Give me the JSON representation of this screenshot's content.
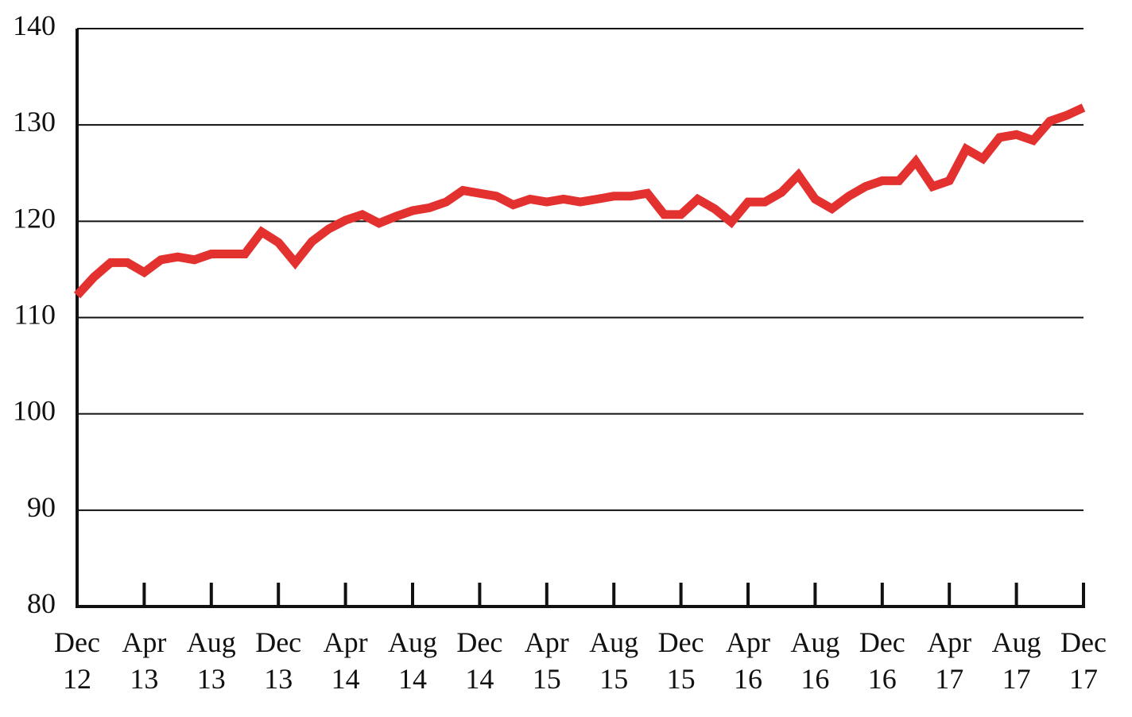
{
  "chart_data": {
    "type": "line",
    "title": "",
    "xlabel": "",
    "ylabel": "",
    "ylim": [
      80,
      140
    ],
    "yticks": [
      "80",
      "90",
      "100",
      "110",
      "120",
      "130",
      "140"
    ],
    "grid": true,
    "legend": "none",
    "line_color": "#e3312f",
    "x_tick_labels": [
      {
        "month": "Dec",
        "year": "12"
      },
      {
        "month": "Apr",
        "year": "13"
      },
      {
        "month": "Aug",
        "year": "13"
      },
      {
        "month": "Dec",
        "year": "13"
      },
      {
        "month": "Apr",
        "year": "14"
      },
      {
        "month": "Aug",
        "year": "14"
      },
      {
        "month": "Dec",
        "year": "14"
      },
      {
        "month": "Apr",
        "year": "15"
      },
      {
        "month": "Aug",
        "year": "15"
      },
      {
        "month": "Dec",
        "year": "15"
      },
      {
        "month": "Apr",
        "year": "16"
      },
      {
        "month": "Aug",
        "year": "16"
      },
      {
        "month": "Dec",
        "year": "16"
      },
      {
        "month": "Apr",
        "year": "17"
      },
      {
        "month": "Aug",
        "year": "17"
      },
      {
        "month": "Dec",
        "year": "17"
      }
    ],
    "series": [
      {
        "x": [
          "Dec 12",
          "Jan 13",
          "Feb 13",
          "Mar 13",
          "Apr 13",
          "May 13",
          "Jun 13",
          "Jul 13",
          "Aug 13",
          "Sep 13",
          "Oct 13",
          "Nov 13",
          "Dec 13",
          "Jan 14",
          "Feb 14",
          "Mar 14",
          "Apr 14",
          "May 14",
          "Jun 14",
          "Jul 14",
          "Aug 14",
          "Sep 14",
          "Oct 14",
          "Nov 14",
          "Dec 14",
          "Jan 15",
          "Feb 15",
          "Mar 15",
          "Apr 15",
          "May 15",
          "Jun 15",
          "Jul 15",
          "Aug 15",
          "Sep 15",
          "Oct 15",
          "Nov 15",
          "Dec 15",
          "Jan 16",
          "Feb 16",
          "Mar 16",
          "Apr 16",
          "May 16",
          "Jun 16",
          "Jul 16",
          "Aug 16",
          "Sep 16",
          "Oct 16",
          "Nov 16",
          "Dec 16",
          "Jan 17",
          "Feb 17",
          "Mar 17",
          "Apr 17",
          "May 17",
          "Jun 17",
          "Jul 17",
          "Aug 17",
          "Sep 17",
          "Oct 17",
          "Nov 17",
          "Dec 17"
        ],
        "values": [
          112.3,
          114.2,
          115.7,
          115.7,
          114.7,
          116.0,
          116.3,
          116.0,
          116.6,
          116.6,
          116.6,
          118.9,
          117.8,
          115.7,
          117.9,
          119.2,
          120.1,
          120.7,
          119.8,
          120.5,
          121.1,
          121.4,
          122.0,
          123.2,
          122.9,
          122.6,
          121.7,
          122.3,
          122.0,
          122.3,
          122.0,
          122.3,
          122.6,
          122.6,
          122.9,
          120.7,
          120.7,
          122.3,
          121.3,
          119.9,
          122.0,
          122.0,
          123.0,
          124.8,
          122.3,
          121.3,
          122.6,
          123.6,
          124.2,
          124.2,
          126.2,
          123.6,
          124.2,
          127.5,
          126.5,
          128.7,
          129.0,
          128.4,
          130.4,
          131.0,
          131.8
        ]
      }
    ]
  }
}
